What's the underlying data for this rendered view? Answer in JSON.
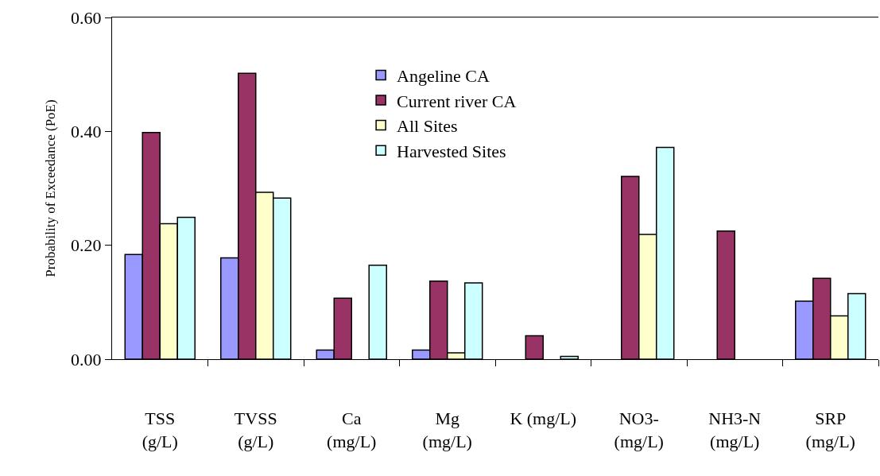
{
  "chart_data": {
    "type": "bar",
    "ylabel": "Probability of Exceedance (PoE)",
    "categories": [
      "TSS\n(g/L)",
      "TVSS\n(g/L)",
      "Ca\n(mg/L)",
      "Mg\n(mg/L)",
      "K (mg/L)",
      "NO3-\n(mg/L)",
      "NH3-N\n(mg/L)",
      "SRP\n(mg/L)"
    ],
    "series": [
      {
        "name": "Angeline CA",
        "color": "#9999ff",
        "values": [
          0.184,
          0.178,
          0.016,
          0.016,
          null,
          null,
          null,
          0.102
        ]
      },
      {
        "name": "Current river CA",
        "color": "#993366",
        "values": [
          0.398,
          0.502,
          0.107,
          0.137,
          0.041,
          0.321,
          0.225,
          0.142
        ]
      },
      {
        "name": "All Sites",
        "color": "#ffffcc",
        "values": [
          0.238,
          0.293,
          null,
          0.011,
          null,
          0.219,
          null,
          0.076
        ]
      },
      {
        "name": "Harvested Sites",
        "color": "#ccffff",
        "values": [
          0.249,
          0.283,
          0.165,
          0.134,
          0.005,
          0.372,
          null,
          0.115
        ]
      }
    ],
    "ylim": [
      0,
      0.6
    ],
    "yticks": [
      {
        "value": 0,
        "label": "0.00"
      },
      {
        "value": 0.2,
        "label": "0.20"
      },
      {
        "value": 0.4,
        "label": "0.40"
      },
      {
        "value": 0.6,
        "label": "0.60"
      }
    ],
    "legend": "top"
  }
}
